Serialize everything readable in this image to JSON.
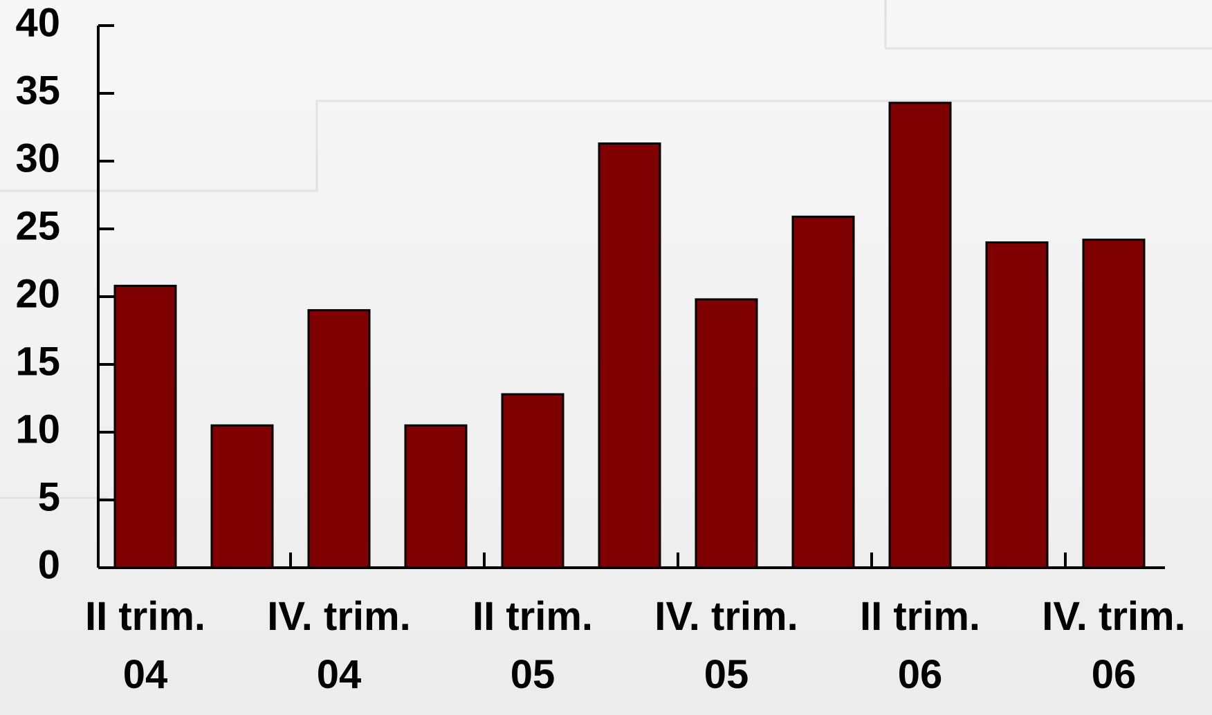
{
  "chart_data": {
    "type": "bar",
    "categories": [
      "II trim.\n04",
      null,
      "IV. trim.\n04",
      null,
      "II trim.\n05",
      null,
      "IV. trim.\n05",
      null,
      "II trim.\n06",
      null,
      "IV. trim.\n06"
    ],
    "values": [
      20.8,
      10.5,
      19.0,
      10.5,
      12.8,
      31.3,
      19.8,
      25.9,
      34.3,
      24.0,
      24.2
    ],
    "color": "#7f0000",
    "ylim": [
      0,
      40
    ],
    "yticks": [
      0,
      5,
      10,
      15,
      20,
      25,
      30,
      35,
      40
    ],
    "grid": false
  }
}
